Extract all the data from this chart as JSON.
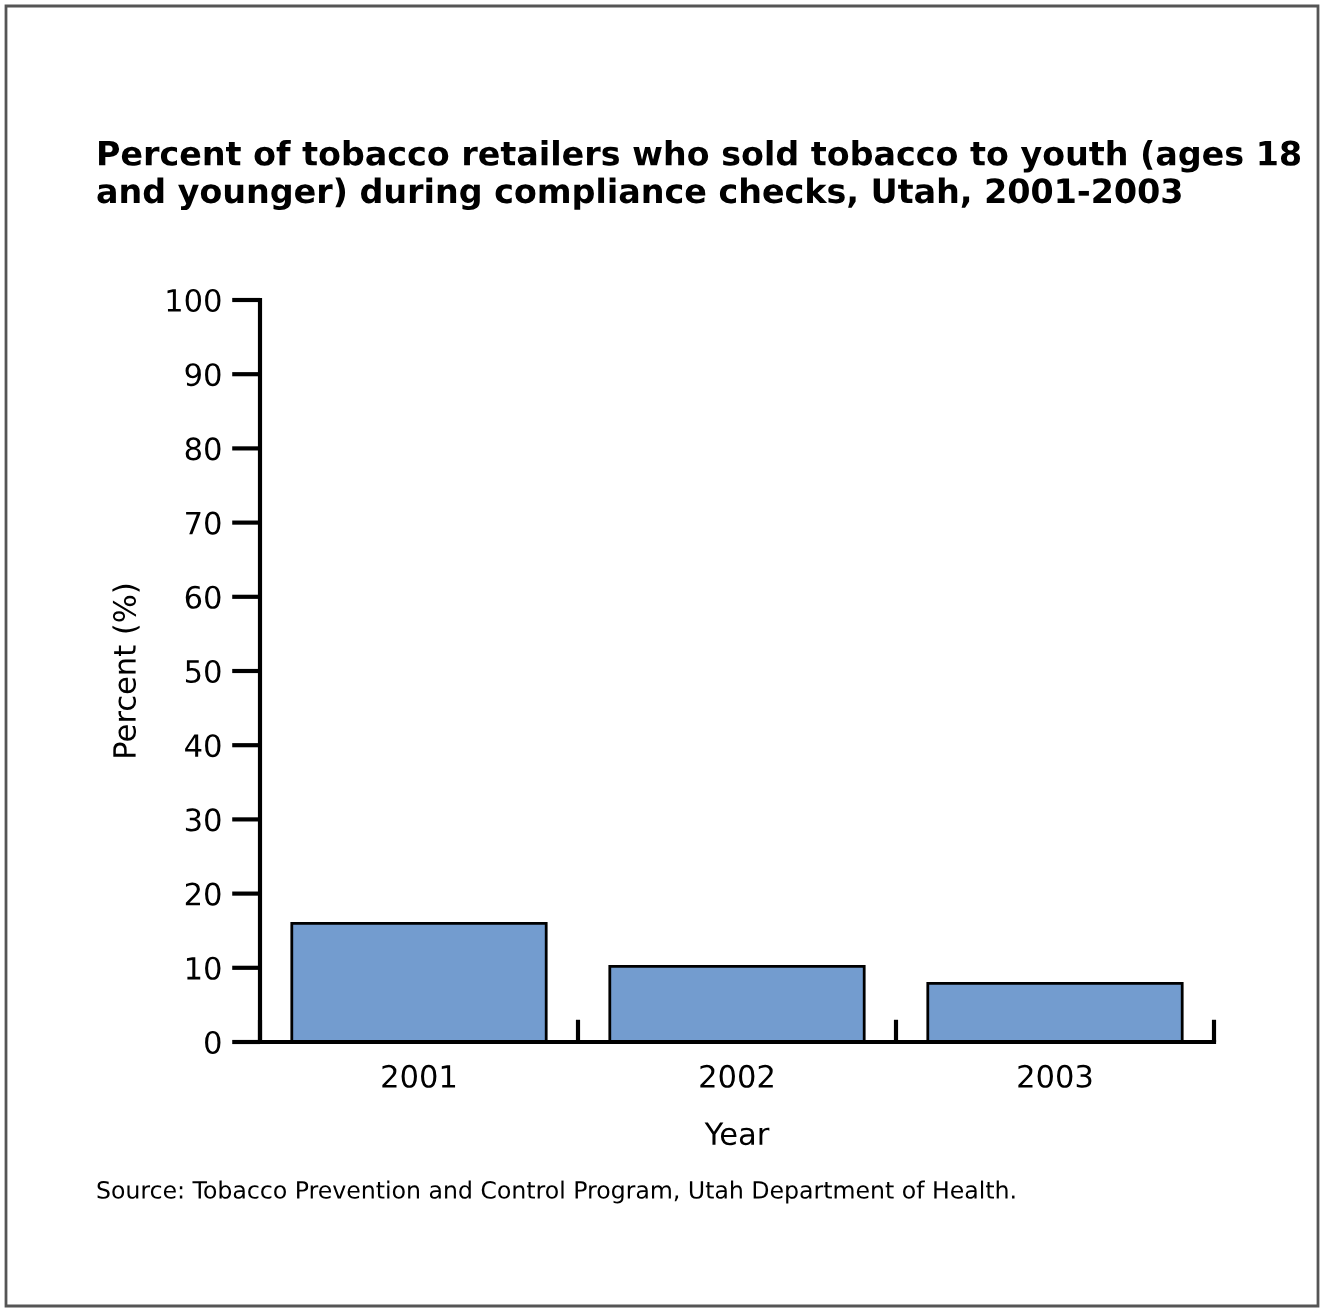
{
  "chart_data": {
    "type": "bar",
    "title": "Percent of tobacco retailers who sold tobacco to youth (ages 18 and younger) during compliance checks, Utah, 2001-2003",
    "xlabel": "Year",
    "ylabel": "Percent (%)",
    "categories": [
      "2001",
      "2002",
      "2003"
    ],
    "values": [
      16,
      10.2,
      7.9
    ],
    "color": "#739ccf",
    "ylim": [
      0,
      100
    ],
    "yticks": [
      0,
      10,
      20,
      30,
      40,
      50,
      60,
      70,
      80,
      90,
      100
    ],
    "grid": false,
    "legend": false,
    "annotations": [
      "Source: Tobacco Prevention and Control Program, Utah Department of Health."
    ]
  }
}
